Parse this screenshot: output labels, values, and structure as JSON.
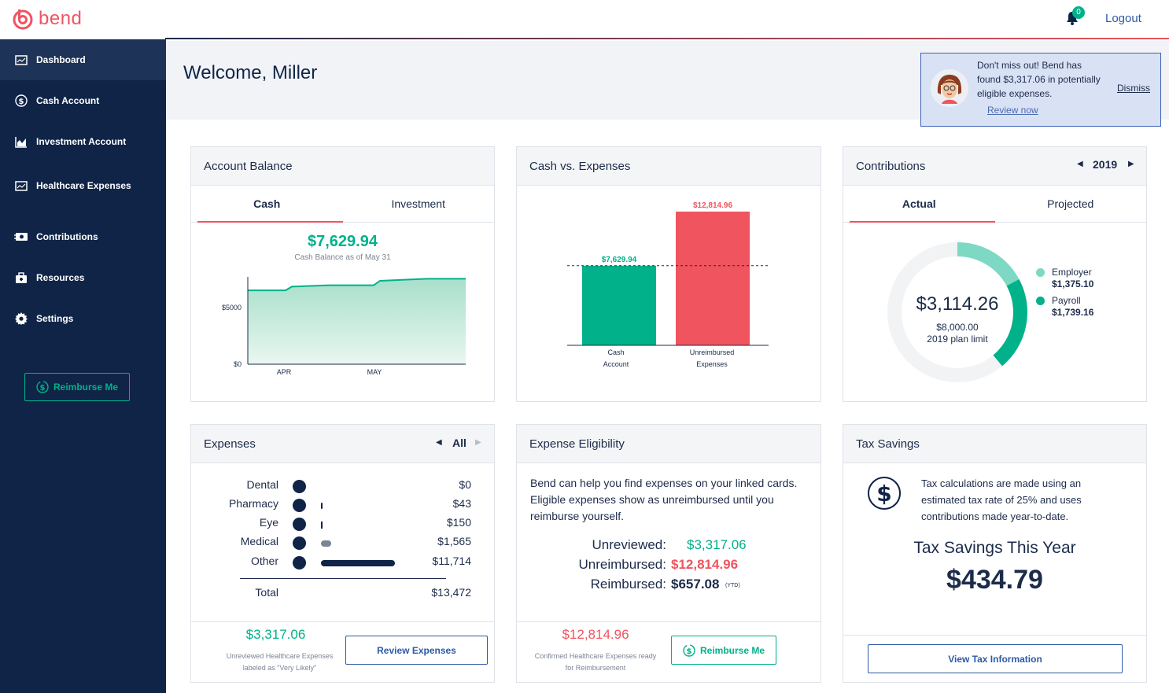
{
  "brand": {
    "name": "bend",
    "accent": "#ef5462",
    "green": "#00b18a",
    "navy": "#0f2447"
  },
  "topbar": {
    "notification_count": "0",
    "logout": "Logout"
  },
  "sidebar": {
    "items": [
      {
        "label": "Dashboard",
        "icon": "dashboard-icon"
      },
      {
        "label": "Cash Account",
        "icon": "dollar-circle-icon"
      },
      {
        "label": "Investment Account",
        "icon": "bar-chart-icon"
      },
      {
        "label": "Healthcare Expenses",
        "icon": "receipt-icon"
      },
      {
        "label": "Contributions",
        "icon": "money-icon"
      },
      {
        "label": "Resources",
        "icon": "briefcase-icon"
      },
      {
        "label": "Settings",
        "icon": "gear-icon"
      }
    ],
    "reimburse_button": "Reimburse Me"
  },
  "header": {
    "welcome": "Welcome, Miller"
  },
  "promo": {
    "message": "Don't miss out! Bend has found  $3,317.06 in potentially eligible expenses.",
    "review": "Review now",
    "dismiss": "Dismiss"
  },
  "account_balance": {
    "title": "Account Balance",
    "tabs": [
      "Cash",
      "Investment"
    ],
    "amount": "$7,629.94",
    "caption": "Cash Balance as of May 31",
    "chart": {
      "y_ticks": [
        "$5000",
        "$0"
      ],
      "x_ticks": [
        "APR",
        "MAY"
      ]
    }
  },
  "chart_data": [
    {
      "type": "area",
      "title": "Cash Balance",
      "x": [
        "start",
        "APR",
        "mid",
        "MAY",
        "end"
      ],
      "values": [
        6600,
        6650,
        7050,
        7450,
        7630
      ],
      "ylim": [
        0,
        7800
      ],
      "ytick_labels": [
        "$0",
        "$5000"
      ],
      "xtick_labels": [
        "APR",
        "MAY"
      ]
    },
    {
      "type": "bar",
      "title": "Cash vs. Expenses",
      "categories": [
        "Cash Account",
        "Unreimbursed Expenses"
      ],
      "values": [
        7629.94,
        12814.96
      ],
      "labels": [
        "$7,629.94",
        "$12,814.96"
      ],
      "colors": [
        "#00b18a",
        "#f0545f"
      ]
    },
    {
      "type": "pie",
      "title": "Contributions",
      "total": 3114.26,
      "limit": 8000.0,
      "series": [
        {
          "name": "Employer",
          "value": 1375.1,
          "color": "#7dd9c3"
        },
        {
          "name": "Payroll",
          "value": 1739.16,
          "color": "#00b18a"
        }
      ]
    }
  ],
  "cash_vs_expenses": {
    "title": "Cash vs. Expenses",
    "cash_label": "$7,629.94",
    "expense_label": "$12,814.96",
    "cat1_line1": "Cash",
    "cat1_line2": "Account",
    "cat2_line1": "Unreimbursed",
    "cat2_line2": "Expenses"
  },
  "contributions": {
    "title": "Contributions",
    "year": "2019",
    "tabs": [
      "Actual",
      "Projected"
    ],
    "total": "$3,114.26",
    "limit": "$8,000.00",
    "limit_label": "2019 plan limit",
    "legend": [
      {
        "name": "Employer",
        "value": "$1,375.10"
      },
      {
        "name": "Payroll",
        "value": "$1,739.16"
      }
    ]
  },
  "expenses": {
    "title": "Expenses",
    "filter": "All",
    "rows": [
      {
        "label": "Dental",
        "amount": "$0",
        "value": 0
      },
      {
        "label": "Pharmacy",
        "amount": "$43",
        "value": 43
      },
      {
        "label": "Eye",
        "amount": "$150",
        "value": 150
      },
      {
        "label": "Medical",
        "amount": "$1,565",
        "value": 1565
      },
      {
        "label": "Other",
        "amount": "$11,714",
        "value": 11714
      }
    ],
    "total_label": "Total",
    "total_amount": "$13,472",
    "unreviewed": "$3,317.06",
    "unreviewed_caption1": "Unreviewed Healthcare Expenses",
    "unreviewed_caption2": "labeled as \"Very Likely\"",
    "review_button": "Review Expenses"
  },
  "eligibility": {
    "title": "Expense Eligibility",
    "description": "Bend can help you find expenses on your linked cards. Eligible expenses show as unreimbursed until you reimburse yourself.",
    "unreviewed_label": "Unreviewed:",
    "unreviewed_value": "$3,317.06",
    "unreimbursed_label": "Unreimbursed:",
    "unreimbursed_value": "$12,814.96",
    "reimbursed_label": "Reimbursed:",
    "reimbursed_value": "$657.08",
    "ytd": "(YTD)",
    "footer_amount": "$12,814.96",
    "footer_caption1": "Confirmed Healthcare Expenses ready",
    "footer_caption2": "for Reimbursement",
    "reimburse_button": "Reimburse Me"
  },
  "tax": {
    "title": "Tax Savings",
    "description": "Tax calculations are made using an estimated tax rate of 25% and uses contributions made year-to-date.",
    "heading": "Tax Savings This Year",
    "amount": "$434.79",
    "button": "View Tax Information"
  }
}
